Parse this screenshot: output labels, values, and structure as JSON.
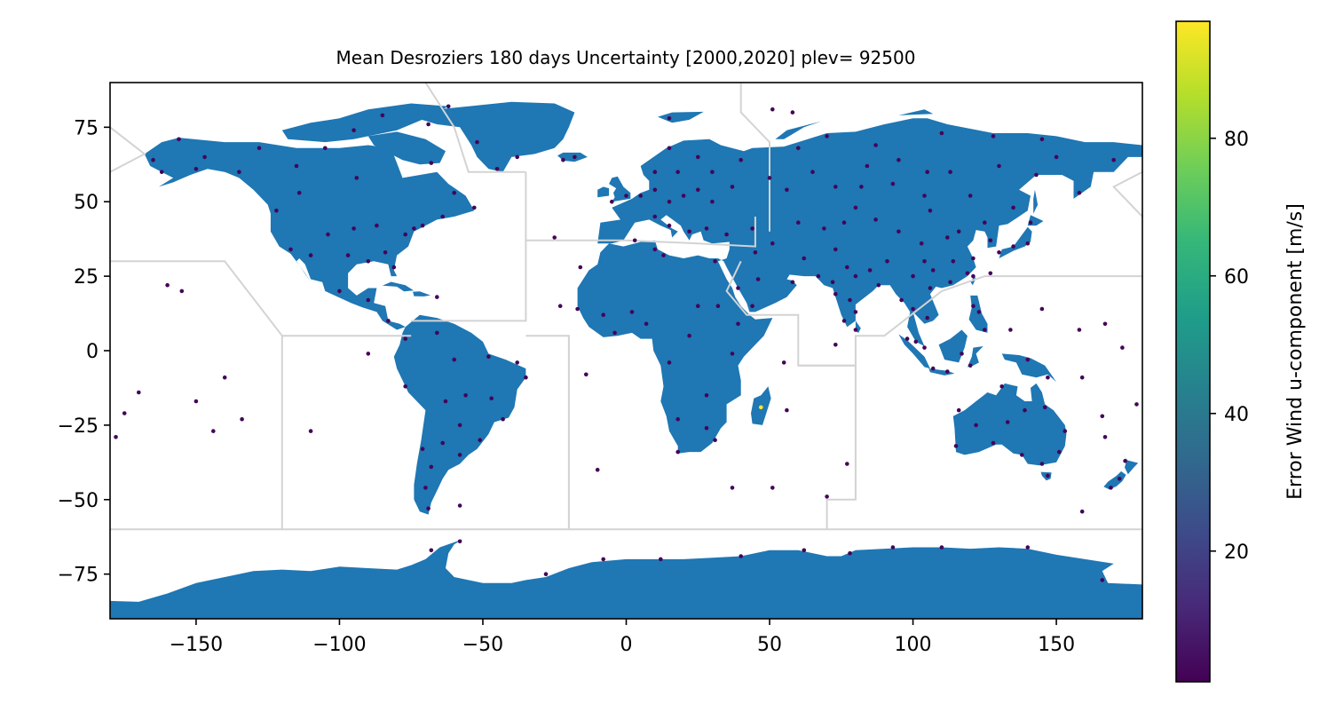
{
  "chart_data": {
    "type": "scatter",
    "title": "Mean Desroziers 180 days  Uncertainty [2000,2020] plev= 92500",
    "xlim": [
      -180,
      180
    ],
    "ylim": [
      -90,
      90
    ],
    "xticks": [
      "−150",
      "−100",
      "−50",
      "0",
      "50",
      "100",
      "150"
    ],
    "xtick_values": [
      -150,
      -100,
      -50,
      0,
      50,
      100,
      150
    ],
    "yticks": [
      "75",
      "50",
      "25",
      "0",
      "−25",
      "−50",
      "−75"
    ],
    "ytick_values": [
      75,
      50,
      25,
      0,
      -25,
      -50,
      -75
    ],
    "grid": false,
    "land_color": "#1f77b4",
    "region_line_color": "#d3d3d3",
    "colorbar": {
      "label": "Error Wind u-component [m/s]",
      "colormap": "viridis",
      "range": [
        1,
        97
      ],
      "ticks": [
        "20",
        "40",
        "60",
        "80"
      ],
      "tick_values": [
        20,
        40,
        60,
        80
      ],
      "stops": [
        "#440154",
        "#482878",
        "#3e4a89",
        "#31688e",
        "#26828e",
        "#1f9e89",
        "#35b779",
        "#6ece58",
        "#b5de2b",
        "#fde725"
      ]
    },
    "stations": [
      {
        "lon": -165,
        "lat": 64,
        "v": 2
      },
      {
        "lon": -156,
        "lat": 71,
        "v": 2
      },
      {
        "lon": -150,
        "lat": 61,
        "v": 2
      },
      {
        "lon": -147,
        "lat": 65,
        "v": 2
      },
      {
        "lon": -162,
        "lat": 60,
        "v": 2
      },
      {
        "lon": -135,
        "lat": 60,
        "v": 2
      },
      {
        "lon": -128,
        "lat": 68,
        "v": 2
      },
      {
        "lon": -115,
        "lat": 62,
        "v": 2
      },
      {
        "lon": -105,
        "lat": 68,
        "v": 2
      },
      {
        "lon": -95,
        "lat": 74,
        "v": 2
      },
      {
        "lon": -85,
        "lat": 79,
        "v": 2
      },
      {
        "lon": -94,
        "lat": 58,
        "v": 2
      },
      {
        "lon": -114,
        "lat": 53,
        "v": 2
      },
      {
        "lon": -122,
        "lat": 47,
        "v": 2
      },
      {
        "lon": -117,
        "lat": 34,
        "v": 2
      },
      {
        "lon": -110,
        "lat": 32,
        "v": 2
      },
      {
        "lon": -104,
        "lat": 39,
        "v": 2
      },
      {
        "lon": -97,
        "lat": 32,
        "v": 2
      },
      {
        "lon": -95,
        "lat": 41,
        "v": 2
      },
      {
        "lon": -90,
        "lat": 30,
        "v": 2
      },
      {
        "lon": -87,
        "lat": 42,
        "v": 2
      },
      {
        "lon": -84,
        "lat": 33,
        "v": 2
      },
      {
        "lon": -81,
        "lat": 28,
        "v": 2
      },
      {
        "lon": -77,
        "lat": 39,
        "v": 2
      },
      {
        "lon": -74,
        "lat": 41,
        "v": 2
      },
      {
        "lon": -71,
        "lat": 42,
        "v": 2
      },
      {
        "lon": -64,
        "lat": 45,
        "v": 2
      },
      {
        "lon": -53,
        "lat": 48,
        "v": 2
      },
      {
        "lon": -60,
        "lat": 53,
        "v": 2
      },
      {
        "lon": -68,
        "lat": 63,
        "v": 2
      },
      {
        "lon": -52,
        "lat": 70,
        "v": 2
      },
      {
        "lon": -45,
        "lat": 61,
        "v": 2
      },
      {
        "lon": -22,
        "lat": 64,
        "v": 2
      },
      {
        "lon": -100,
        "lat": 20,
        "v": 2
      },
      {
        "lon": -90,
        "lat": 17,
        "v": 2
      },
      {
        "lon": -83,
        "lat": 10,
        "v": 2
      },
      {
        "lon": -66,
        "lat": 18,
        "v": 2
      },
      {
        "lon": -77,
        "lat": 4,
        "v": 2
      },
      {
        "lon": -66,
        "lat": 6,
        "v": 2
      },
      {
        "lon": -60,
        "lat": -3,
        "v": 2
      },
      {
        "lon": -48,
        "lat": -2,
        "v": 2
      },
      {
        "lon": -38,
        "lat": -4,
        "v": 2
      },
      {
        "lon": -35,
        "lat": -9,
        "v": 2
      },
      {
        "lon": -47,
        "lat": -16,
        "v": 2
      },
      {
        "lon": -43,
        "lat": -23,
        "v": 2
      },
      {
        "lon": -56,
        "lat": -15,
        "v": 2
      },
      {
        "lon": -63,
        "lat": -17,
        "v": 2
      },
      {
        "lon": -77,
        "lat": -12,
        "v": 2
      },
      {
        "lon": -58,
        "lat": -25,
        "v": 2
      },
      {
        "lon": -51,
        "lat": -30,
        "v": 2
      },
      {
        "lon": -64,
        "lat": -31,
        "v": 2
      },
      {
        "lon": -71,
        "lat": -33,
        "v": 2
      },
      {
        "lon": -58,
        "lat": -35,
        "v": 2
      },
      {
        "lon": -68,
        "lat": -39,
        "v": 2
      },
      {
        "lon": -70,
        "lat": -46,
        "v": 2
      },
      {
        "lon": -69,
        "lat": -53,
        "v": 2
      },
      {
        "lon": -58,
        "lat": -52,
        "v": 2
      },
      {
        "lon": -155,
        "lat": 20,
        "v": 2
      },
      {
        "lon": -160,
        "lat": 22,
        "v": 2
      },
      {
        "lon": -150,
        "lat": -17,
        "v": 2
      },
      {
        "lon": -140,
        "lat": -9,
        "v": 2
      },
      {
        "lon": -170,
        "lat": -14,
        "v": 2
      },
      {
        "lon": -175,
        "lat": -21,
        "v": 2
      },
      {
        "lon": -134,
        "lat": -23,
        "v": 2
      },
      {
        "lon": -110,
        "lat": -27,
        "v": 2
      },
      {
        "lon": -178,
        "lat": -29,
        "v": 2
      },
      {
        "lon": -144,
        "lat": -27,
        "v": 2
      },
      {
        "lon": -90,
        "lat": -1,
        "v": 2
      },
      {
        "lon": -14,
        "lat": -8,
        "v": 2
      },
      {
        "lon": -10,
        "lat": -40,
        "v": 2
      },
      {
        "lon": -25,
        "lat": 38,
        "v": 2
      },
      {
        "lon": -16,
        "lat": 28,
        "v": 2
      },
      {
        "lon": -23,
        "lat": 15,
        "v": 2
      },
      {
        "lon": -17,
        "lat": 14,
        "v": 2
      },
      {
        "lon": -8,
        "lat": 12,
        "v": 2
      },
      {
        "lon": 2,
        "lat": 13,
        "v": 2
      },
      {
        "lon": 7,
        "lat": 9,
        "v": 2
      },
      {
        "lon": -4,
        "lat": 6,
        "v": 2
      },
      {
        "lon": 3,
        "lat": 37,
        "v": 2
      },
      {
        "lon": 10,
        "lat": 34,
        "v": 2
      },
      {
        "lon": 13,
        "lat": 32,
        "v": 2
      },
      {
        "lon": 31,
        "lat": 30,
        "v": 2
      },
      {
        "lon": 32,
        "lat": 15,
        "v": 2
      },
      {
        "lon": 39,
        "lat": 9,
        "v": 2
      },
      {
        "lon": 37,
        "lat": -1,
        "v": 2
      },
      {
        "lon": 28,
        "lat": -15,
        "v": 2
      },
      {
        "lon": 18,
        "lat": -23,
        "v": 2
      },
      {
        "lon": 28,
        "lat": -26,
        "v": 2
      },
      {
        "lon": 18,
        "lat": -34,
        "v": 2
      },
      {
        "lon": 31,
        "lat": -30,
        "v": 2
      },
      {
        "lon": 15,
        "lat": -4,
        "v": 2
      },
      {
        "lon": 22,
        "lat": 5,
        "v": 2
      },
      {
        "lon": 25,
        "lat": 15,
        "v": 2
      },
      {
        "lon": 47,
        "lat": -19,
        "v": 97
      },
      {
        "lon": 56,
        "lat": -20,
        "v": 2
      },
      {
        "lon": 55,
        "lat": -4,
        "v": 2
      },
      {
        "lon": 73,
        "lat": 2,
        "v": 2
      },
      {
        "lon": 77,
        "lat": -38,
        "v": 2
      },
      {
        "lon": 70,
        "lat": -49,
        "v": 2
      },
      {
        "lon": 51,
        "lat": -46,
        "v": 2
      },
      {
        "lon": 37,
        "lat": -46,
        "v": 2
      },
      {
        "lon": -5,
        "lat": 50,
        "v": 2
      },
      {
        "lon": 0,
        "lat": 52,
        "v": 2
      },
      {
        "lon": 5,
        "lat": 52,
        "v": 2
      },
      {
        "lon": 10,
        "lat": 54,
        "v": 2
      },
      {
        "lon": 15,
        "lat": 50,
        "v": 2
      },
      {
        "lon": 20,
        "lat": 52,
        "v": 2
      },
      {
        "lon": 25,
        "lat": 54,
        "v": 2
      },
      {
        "lon": 30,
        "lat": 50,
        "v": 2
      },
      {
        "lon": 37,
        "lat": 55,
        "v": 2
      },
      {
        "lon": 10,
        "lat": 45,
        "v": 2
      },
      {
        "lon": 15,
        "lat": 42,
        "v": 2
      },
      {
        "lon": 22,
        "lat": 40,
        "v": 2
      },
      {
        "lon": 28,
        "lat": 41,
        "v": 2
      },
      {
        "lon": 35,
        "lat": 39,
        "v": 2
      },
      {
        "lon": 44,
        "lat": 41,
        "v": 2
      },
      {
        "lon": 45,
        "lat": 33,
        "v": 2
      },
      {
        "lon": 46,
        "lat": 24,
        "v": 2
      },
      {
        "lon": 51,
        "lat": 36,
        "v": 2
      },
      {
        "lon": 39,
        "lat": 21,
        "v": 2
      },
      {
        "lon": 44,
        "lat": 15,
        "v": 2
      },
      {
        "lon": 58,
        "lat": 23,
        "v": 2
      },
      {
        "lon": 10,
        "lat": 60,
        "v": 2
      },
      {
        "lon": 18,
        "lat": 60,
        "v": 2
      },
      {
        "lon": 25,
        "lat": 65,
        "v": 2
      },
      {
        "lon": 15,
        "lat": 68,
        "v": 2
      },
      {
        "lon": 30,
        "lat": 60,
        "v": 2
      },
      {
        "lon": 40,
        "lat": 64,
        "v": 2
      },
      {
        "lon": 50,
        "lat": 58,
        "v": 2
      },
      {
        "lon": 56,
        "lat": 54,
        "v": 2
      },
      {
        "lon": 60,
        "lat": 68,
        "v": 2
      },
      {
        "lon": 65,
        "lat": 60,
        "v": 2
      },
      {
        "lon": 73,
        "lat": 55,
        "v": 2
      },
      {
        "lon": 70,
        "lat": 72,
        "v": 2
      },
      {
        "lon": 82,
        "lat": 55,
        "v": 2
      },
      {
        "lon": 84,
        "lat": 62,
        "v": 2
      },
      {
        "lon": 87,
        "lat": 69,
        "v": 2
      },
      {
        "lon": 93,
        "lat": 56,
        "v": 2
      },
      {
        "lon": 95,
        "lat": 64,
        "v": 2
      },
      {
        "lon": 104,
        "lat": 52,
        "v": 2
      },
      {
        "lon": 105,
        "lat": 60,
        "v": 2
      },
      {
        "lon": 113,
        "lat": 60,
        "v": 2
      },
      {
        "lon": 120,
        "lat": 52,
        "v": 2
      },
      {
        "lon": 130,
        "lat": 62,
        "v": 2
      },
      {
        "lon": 135,
        "lat": 48,
        "v": 2
      },
      {
        "lon": 143,
        "lat": 59,
        "v": 2
      },
      {
        "lon": 150,
        "lat": 65,
        "v": 2
      },
      {
        "lon": 158,
        "lat": 53,
        "v": 2
      },
      {
        "lon": 170,
        "lat": 64,
        "v": 2
      },
      {
        "lon": 128,
        "lat": 72,
        "v": 2
      },
      {
        "lon": 145,
        "lat": 71,
        "v": 2
      },
      {
        "lon": 110,
        "lat": 73,
        "v": 2
      },
      {
        "lon": 60,
        "lat": 43,
        "v": 2
      },
      {
        "lon": 69,
        "lat": 41,
        "v": 2
      },
      {
        "lon": 76,
        "lat": 43,
        "v": 2
      },
      {
        "lon": 87,
        "lat": 44,
        "v": 2
      },
      {
        "lon": 80,
        "lat": 48,
        "v": 2
      },
      {
        "lon": 95,
        "lat": 40,
        "v": 2
      },
      {
        "lon": 103,
        "lat": 36,
        "v": 2
      },
      {
        "lon": 106,
        "lat": 47,
        "v": 2
      },
      {
        "lon": 112,
        "lat": 38,
        "v": 2
      },
      {
        "lon": 116,
        "lat": 40,
        "v": 2
      },
      {
        "lon": 121,
        "lat": 31,
        "v": 2
      },
      {
        "lon": 114,
        "lat": 30,
        "v": 2
      },
      {
        "lon": 113,
        "lat": 23,
        "v": 2
      },
      {
        "lon": 107,
        "lat": 27,
        "v": 2
      },
      {
        "lon": 100,
        "lat": 25,
        "v": 2
      },
      {
        "lon": 104,
        "lat": 30,
        "v": 2
      },
      {
        "lon": 91,
        "lat": 30,
        "v": 2
      },
      {
        "lon": 119,
        "lat": 26,
        "v": 2
      },
      {
        "lon": 125,
        "lat": 43,
        "v": 2
      },
      {
        "lon": 127,
        "lat": 37,
        "v": 2
      },
      {
        "lon": 130,
        "lat": 33,
        "v": 2
      },
      {
        "lon": 135,
        "lat": 35,
        "v": 2
      },
      {
        "lon": 140,
        "lat": 36,
        "v": 2
      },
      {
        "lon": 141,
        "lat": 43,
        "v": 2
      },
      {
        "lon": 127,
        "lat": 26,
        "v": 2
      },
      {
        "lon": 121,
        "lat": 25,
        "v": 2
      },
      {
        "lon": 73,
        "lat": 34,
        "v": 2
      },
      {
        "lon": 77,
        "lat": 28,
        "v": 2
      },
      {
        "lon": 72,
        "lat": 23,
        "v": 2
      },
      {
        "lon": 80,
        "lat": 25,
        "v": 2
      },
      {
        "lon": 88,
        "lat": 22,
        "v": 2
      },
      {
        "lon": 85,
        "lat": 27,
        "v": 2
      },
      {
        "lon": 73,
        "lat": 19,
        "v": 2
      },
      {
        "lon": 78,
        "lat": 17,
        "v": 2
      },
      {
        "lon": 80,
        "lat": 13,
        "v": 2
      },
      {
        "lon": 76,
        "lat": 10,
        "v": 2
      },
      {
        "lon": 80,
        "lat": 7,
        "v": 2
      },
      {
        "lon": 67,
        "lat": 25,
        "v": 2
      },
      {
        "lon": 62,
        "lat": 31,
        "v": 2
      },
      {
        "lon": 96,
        "lat": 17,
        "v": 2
      },
      {
        "lon": 100,
        "lat": 14,
        "v": 2
      },
      {
        "lon": 106,
        "lat": 21,
        "v": 2
      },
      {
        "lon": 105,
        "lat": 11,
        "v": 2
      },
      {
        "lon": 101,
        "lat": 3,
        "v": 2
      },
      {
        "lon": 104,
        "lat": 1,
        "v": 2
      },
      {
        "lon": 98,
        "lat": 4,
        "v": 2
      },
      {
        "lon": 107,
        "lat": -6,
        "v": 2
      },
      {
        "lon": 112,
        "lat": -7,
        "v": 2
      },
      {
        "lon": 117,
        "lat": -1,
        "v": 2
      },
      {
        "lon": 120,
        "lat": -5,
        "v": 2
      },
      {
        "lon": 123,
        "lat": 13,
        "v": 2
      },
      {
        "lon": 121,
        "lat": 15,
        "v": 2
      },
      {
        "lon": 125,
        "lat": 7,
        "v": 2
      },
      {
        "lon": 134,
        "lat": 7,
        "v": 2
      },
      {
        "lon": 145,
        "lat": 14,
        "v": 2
      },
      {
        "lon": 147,
        "lat": -9,
        "v": 2
      },
      {
        "lon": 140,
        "lat": -3,
        "v": 2
      },
      {
        "lon": 131,
        "lat": -12,
        "v": 2
      },
      {
        "lon": 116,
        "lat": -20,
        "v": 2
      },
      {
        "lon": 115,
        "lat": -32,
        "v": 2
      },
      {
        "lon": 122,
        "lat": -25,
        "v": 2
      },
      {
        "lon": 133,
        "lat": -24,
        "v": 2
      },
      {
        "lon": 138,
        "lat": -35,
        "v": 2
      },
      {
        "lon": 145,
        "lat": -38,
        "v": 2
      },
      {
        "lon": 151,
        "lat": -34,
        "v": 2
      },
      {
        "lon": 153,
        "lat": -27,
        "v": 2
      },
      {
        "lon": 146,
        "lat": -19,
        "v": 2
      },
      {
        "lon": 147,
        "lat": -42,
        "v": 2
      },
      {
        "lon": 139,
        "lat": -20,
        "v": 2
      },
      {
        "lon": 128,
        "lat": -31,
        "v": 2
      },
      {
        "lon": 167,
        "lat": -29,
        "v": 2
      },
      {
        "lon": 174,
        "lat": -37,
        "v": 2
      },
      {
        "lon": 172,
        "lat": -43,
        "v": 2
      },
      {
        "lon": 169,
        "lat": -46,
        "v": 2
      },
      {
        "lon": 178,
        "lat": -18,
        "v": 2
      },
      {
        "lon": 166,
        "lat": -22,
        "v": 2
      },
      {
        "lon": 159,
        "lat": -9,
        "v": 2
      },
      {
        "lon": 167,
        "lat": 9,
        "v": 2
      },
      {
        "lon": 173,
        "lat": 1,
        "v": 2
      },
      {
        "lon": 158,
        "lat": 7,
        "v": 2
      },
      {
        "lon": 159,
        "lat": -54,
        "v": 2
      },
      {
        "lon": -58,
        "lat": -64,
        "v": 2
      },
      {
        "lon": -68,
        "lat": -67,
        "v": 2
      },
      {
        "lon": -28,
        "lat": -75,
        "v": 2
      },
      {
        "lon": -8,
        "lat": -70,
        "v": 2
      },
      {
        "lon": 12,
        "lat": -70,
        "v": 2
      },
      {
        "lon": 40,
        "lat": -69,
        "v": 2
      },
      {
        "lon": 62,
        "lat": -67,
        "v": 2
      },
      {
        "lon": 78,
        "lat": -68,
        "v": 2
      },
      {
        "lon": 93,
        "lat": -66,
        "v": 2
      },
      {
        "lon": 110,
        "lat": -66,
        "v": 2
      },
      {
        "lon": 140,
        "lat": -66,
        "v": 2
      },
      {
        "lon": 166,
        "lat": -77,
        "v": 2
      },
      {
        "lon": -18,
        "lat": 65,
        "v": 2
      },
      {
        "lon": -38,
        "lat": 65,
        "v": 2
      },
      {
        "lon": -69,
        "lat": 76,
        "v": 2
      },
      {
        "lon": -62,
        "lat": 82,
        "v": 2
      },
      {
        "lon": 15,
        "lat": 78,
        "v": 2
      },
      {
        "lon": 58,
        "lat": 80,
        "v": 2
      },
      {
        "lon": 51,
        "lat": 81,
        "v": 2
      }
    ]
  }
}
